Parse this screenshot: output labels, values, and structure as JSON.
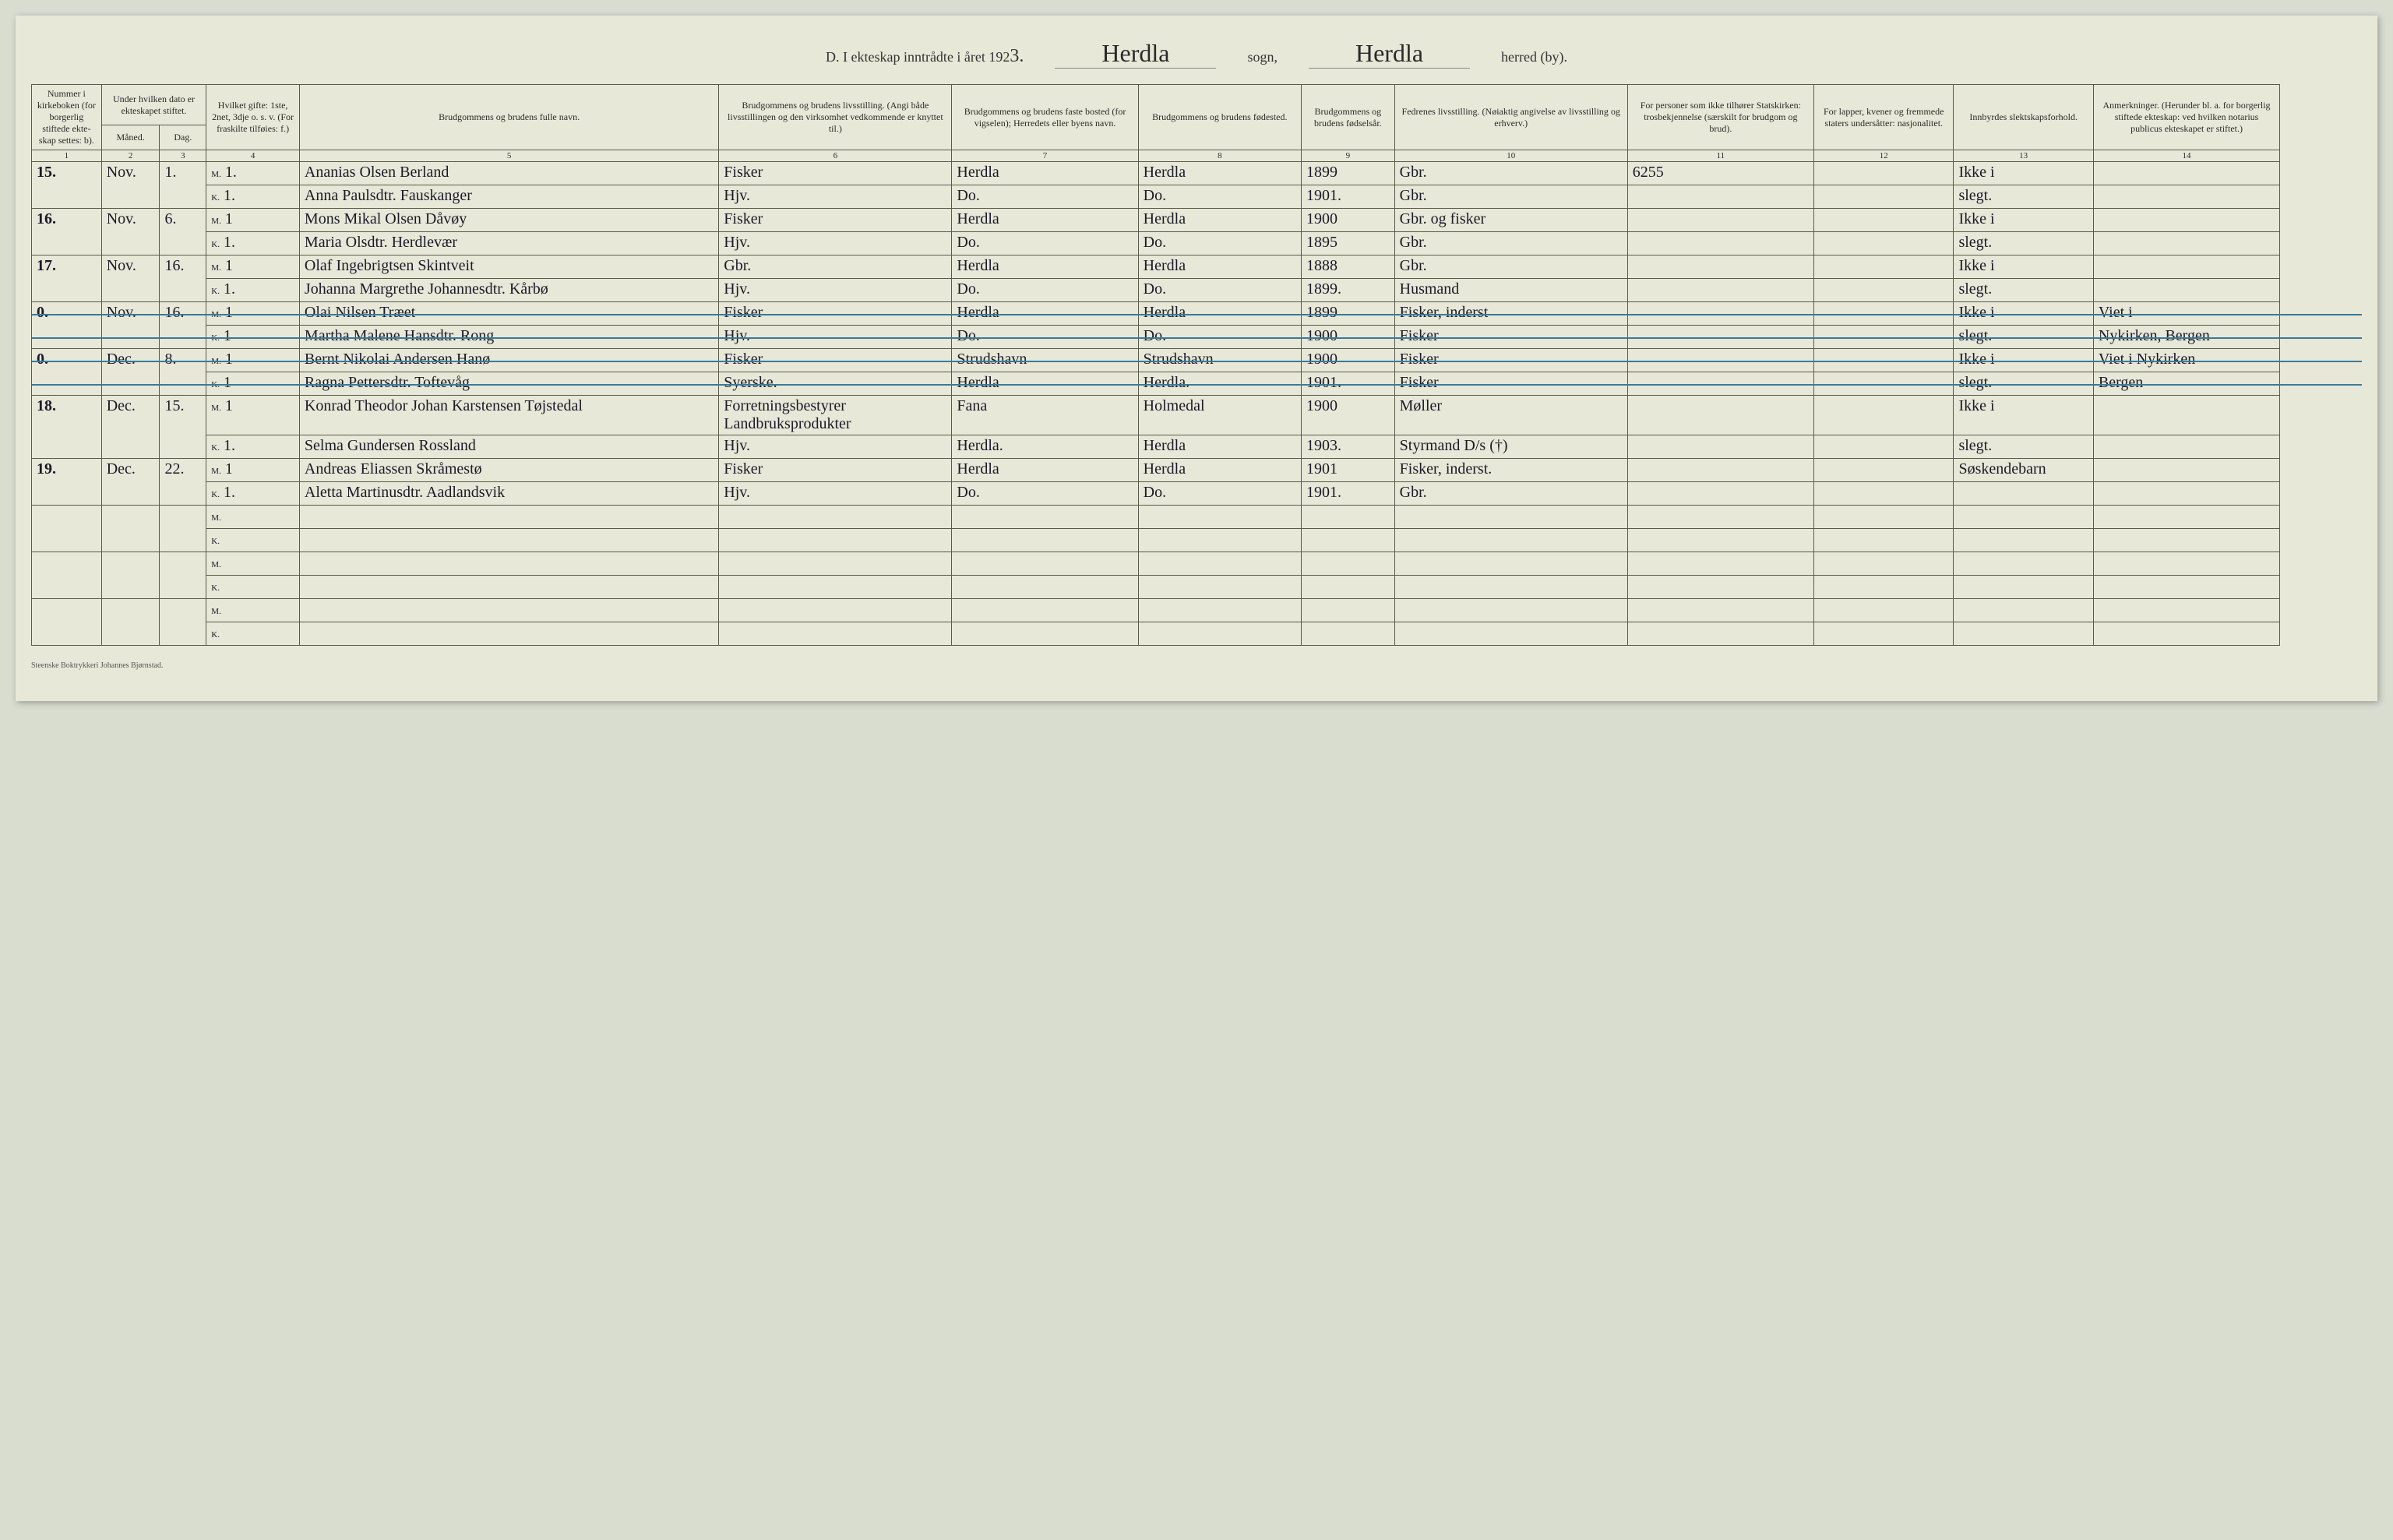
{
  "header": {
    "prefix": "D.  I ekteskap inntrådte i året 192",
    "year_suffix": "3.",
    "parish": "Herdla",
    "sogn_label": "sogn,",
    "district": "Herdla",
    "herred_label": "herred (by)."
  },
  "columns": {
    "c1": "Nummer i kirke­boken (for bor­gerlig stiftede ekte­skap settes: b).",
    "c2_3": "Under hvilken dato er ekte­skapet stiftet.",
    "c2": "Måned.",
    "c3": "Dag.",
    "c4": "Hvilket gifte: 1ste, 2net, 3dje o. s. v. (For fraskilte tilføies: f.)",
    "c5": "Brudgommens og brudens fulle navn.",
    "c6": "Brudgommens og brudens livsstilling. (Angi både livsstillingen og den virksomhet vedkommende er knyttet til.)",
    "c7": "Brudgommens og brudens faste bosted (for vigselen); Herredets eller byens navn.",
    "c8": "Brudgommens og brudens fødested.",
    "c9": "Brudgom­mens og brudens fødsels­år.",
    "c10": "Fedrenes livsstilling. (Nøiaktig angivelse av livsstilling og erhverv.)",
    "c11": "For personer som ikke tilhører Statskirken: trosbekjennelse (særskilt for brudgom og brud).",
    "c12": "For lapper, kvener og fremmede staters undersåtter: nasjonalitet.",
    "c13": "Innbyrdes slektskapsforhold.",
    "c14": "Anmerkninger. (Herunder bl. a. for borgerlig stiftede ekte­skap: ved hvilken notarius publicus ekteskapet er stiftet.)"
  },
  "colnums": [
    "1",
    "2",
    "3",
    "4",
    "5",
    "6",
    "7",
    "8",
    "9",
    "10",
    "11",
    "12",
    "13",
    "14"
  ],
  "records": [
    {
      "num": "15.",
      "month": "Nov.",
      "day": "1.",
      "m": {
        "mk": "M.",
        "gifte": "1.",
        "name": "Ananias Olsen Berland",
        "occ": "Fisker",
        "res": "Herdla",
        "birthpl": "Herdla",
        "year": "1899",
        "father": "Gbr.",
        "c11": "6255",
        "c13": "Ikke i"
      },
      "k": {
        "mk": "K.",
        "gifte": "1.",
        "name": "Anna Paulsdtr. Fauskanger",
        "occ": "Hjv.",
        "res": "Do.",
        "birthpl": "Do.",
        "year": "1901.",
        "father": "Gbr.",
        "c13": "slegt."
      }
    },
    {
      "num": "16.",
      "month": "Nov.",
      "day": "6.",
      "m": {
        "mk": "M.",
        "gifte": "1",
        "name": "Mons Mikal Olsen Dåvøy",
        "occ": "Fisker",
        "res": "Herdla",
        "birthpl": "Herdla",
        "year": "1900",
        "father": "Gbr. og fisker",
        "c13": "Ikke i"
      },
      "k": {
        "mk": "K.",
        "gifte": "1.",
        "name": "Maria Olsdtr. Herdlevær",
        "occ": "Hjv.",
        "res": "Do.",
        "birthpl": "Do.",
        "year": "1895",
        "father": "Gbr.",
        "c13": "slegt."
      }
    },
    {
      "num": "17.",
      "month": "Nov.",
      "day": "16.",
      "m": {
        "mk": "M.",
        "gifte": "1",
        "name": "Olaf Ingebrigtsen Skintveit",
        "occ": "Gbr.",
        "res": "Herdla",
        "birthpl": "Herdla",
        "year": "1888",
        "father": "Gbr.",
        "c13": "Ikke i"
      },
      "k": {
        "mk": "K.",
        "gifte": "1.",
        "name": "Johanna Margrethe Johannesdtr. Kårbø",
        "occ": "Hjv.",
        "res": "Do.",
        "birthpl": "Do.",
        "year": "1899.",
        "father": "Husmand",
        "c13": "slegt."
      }
    },
    {
      "num": "0.",
      "month": "Nov.",
      "day": "16.",
      "struck": true,
      "m": {
        "mk": "M.",
        "gifte": "1",
        "name": "Olai Nilsen Træet",
        "occ": "Fisker",
        "res": "Herdla",
        "birthpl": "Herdla",
        "year": "1899",
        "father": "Fisker, inderst",
        "c13": "Ikke i",
        "c14": "Viet i"
      },
      "k": {
        "mk": "K.",
        "gifte": "1",
        "name": "Martha Malene Hansdtr. Rong",
        "occ": "Hjv.",
        "res": "Do.",
        "birthpl": "Do.",
        "year": "1900",
        "father": "Fisker",
        "c13": "slegt.",
        "c14": "Nykirken, Bergen"
      }
    },
    {
      "num": "0.",
      "month": "Dec.",
      "day": "8.",
      "struck": true,
      "m": {
        "mk": "M.",
        "gifte": "1",
        "name": "Bernt Nikolai Andersen Hanø",
        "occ": "Fisker",
        "res": "Strudshavn",
        "birthpl": "Strudshavn",
        "year": "1900",
        "father": "Fisker",
        "c13": "Ikke i",
        "c14": "Viet i Nykirken"
      },
      "k": {
        "mk": "K.",
        "gifte": "1",
        "name": "Ragna Pettersdtr. Toftevåg",
        "occ": "Syerske.",
        "res": "Herdla",
        "birthpl": "Herdla.",
        "year": "1901.",
        "father": "Fisker",
        "c13": "slegt.",
        "c14": "Bergen"
      }
    },
    {
      "num": "18.",
      "month": "Dec.",
      "day": "15.",
      "m": {
        "mk": "M.",
        "gifte": "1",
        "name": "Konrad Theodor Johan Karstensen Tøjstedal",
        "occ": "Forretningsbestyrer Landbruksprodukter",
        "res": "Fana",
        "birthpl": "Holmedal",
        "year": "1900",
        "father": "Møller",
        "c13": "Ikke i"
      },
      "k": {
        "mk": "K.",
        "gifte": "1.",
        "name": "Selma Gundersen Rossland",
        "occ": "Hjv.",
        "res": "Herdla.",
        "birthpl": "Herdla",
        "year": "1903.",
        "father": "Styrmand D/s (†)",
        "c13": "slegt."
      }
    },
    {
      "num": "19.",
      "month": "Dec.",
      "day": "22.",
      "m": {
        "mk": "M.",
        "gifte": "1",
        "name": "Andreas Eliassen Skråmestø",
        "occ": "Fisker",
        "res": "Herdla",
        "birthpl": "Herdla",
        "year": "1901",
        "father": "Fisker, inderst.",
        "c13": "Søskendebarn"
      },
      "k": {
        "mk": "K.",
        "gifte": "1.",
        "name": "Aletta Martinusdtr. Aadlandsvik",
        "occ": "Hjv.",
        "res": "Do.",
        "birthpl": "Do.",
        "year": "1901.",
        "father": "Gbr."
      }
    }
  ],
  "blank_rows": 3,
  "footer": "Steenske Boktrykkeri Johannes Bjørnstad."
}
